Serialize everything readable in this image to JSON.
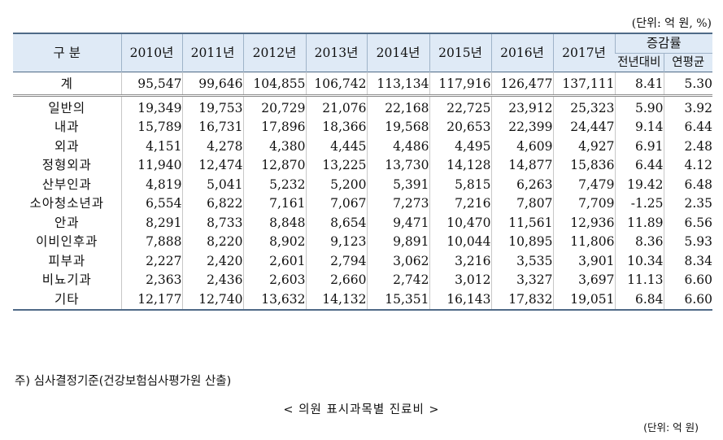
{
  "unit_top": "(단위: 억 원, %)",
  "header": {
    "category": "구  분",
    "years": [
      "2010년",
      "2011년",
      "2012년",
      "2013년",
      "2014년",
      "2015년",
      "2016년",
      "2017년"
    ],
    "change": "증감률",
    "change_sub": [
      "전년대비",
      "연평균"
    ]
  },
  "total": {
    "category": "계",
    "values": [
      "95,547",
      "99,646",
      "104,855",
      "106,742",
      "113,134",
      "117,916",
      "126,477",
      "137,111"
    ],
    "yoy": "8.41",
    "cagr": "5.30"
  },
  "rows": [
    {
      "category": "일반의",
      "values": [
        "19,349",
        "19,753",
        "20,729",
        "21,076",
        "22,168",
        "22,725",
        "23,912",
        "25,323"
      ],
      "yoy": "5.90",
      "cagr": "3.92"
    },
    {
      "category": "내과",
      "values": [
        "15,789",
        "16,731",
        "17,896",
        "18,366",
        "19,568",
        "20,653",
        "22,399",
        "24,447"
      ],
      "yoy": "9.14",
      "cagr": "6.44"
    },
    {
      "category": "외과",
      "values": [
        "4,151",
        "4,278",
        "4,380",
        "4,445",
        "4,486",
        "4,495",
        "4,609",
        "4,927"
      ],
      "yoy": "6.91",
      "cagr": "2.48"
    },
    {
      "category": "정형외과",
      "values": [
        "11,940",
        "12,474",
        "12,870",
        "13,225",
        "13,730",
        "14,128",
        "14,877",
        "15,836"
      ],
      "yoy": "6.44",
      "cagr": "4.12"
    },
    {
      "category": "산부인과",
      "values": [
        "4,819",
        "5,041",
        "5,232",
        "5,200",
        "5,391",
        "5,815",
        "6,263",
        "7,479"
      ],
      "yoy": "19.42",
      "cagr": "6.48"
    },
    {
      "category": "소아청소년과",
      "values": [
        "6,554",
        "6,822",
        "7,161",
        "7,067",
        "7,273",
        "7,216",
        "7,807",
        "7,709"
      ],
      "yoy": "-1.25",
      "cagr": "2.35"
    },
    {
      "category": "안과",
      "values": [
        "8,291",
        "8,733",
        "8,848",
        "8,654",
        "9,471",
        "10,470",
        "11,561",
        "12,936"
      ],
      "yoy": "11.89",
      "cagr": "6.56"
    },
    {
      "category": "이비인후과",
      "values": [
        "7,888",
        "8,220",
        "8,902",
        "9,123",
        "9,891",
        "10,044",
        "10,895",
        "11,806"
      ],
      "yoy": "8.36",
      "cagr": "5.93"
    },
    {
      "category": "피부과",
      "values": [
        "2,227",
        "2,420",
        "2,601",
        "2,794",
        "3,062",
        "3,216",
        "3,535",
        "3,901"
      ],
      "yoy": "10.34",
      "cagr": "8.34"
    },
    {
      "category": "비뇨기과",
      "values": [
        "2,363",
        "2,436",
        "2,603",
        "2,660",
        "2,742",
        "3,012",
        "3,327",
        "3,697"
      ],
      "yoy": "11.13",
      "cagr": "6.60"
    },
    {
      "category": "기타",
      "values": [
        "12,177",
        "12,740",
        "13,632",
        "14,132",
        "15,351",
        "16,143",
        "17,832",
        "19,051"
      ],
      "yoy": "6.84",
      "cagr": "6.60"
    }
  ],
  "note": "주) 심사결정기준(건강보험심사평가원 산출)",
  "caption": "< 의원 표시과목별 진료비 >",
  "unit_bottom": "(단위: 억 원)"
}
